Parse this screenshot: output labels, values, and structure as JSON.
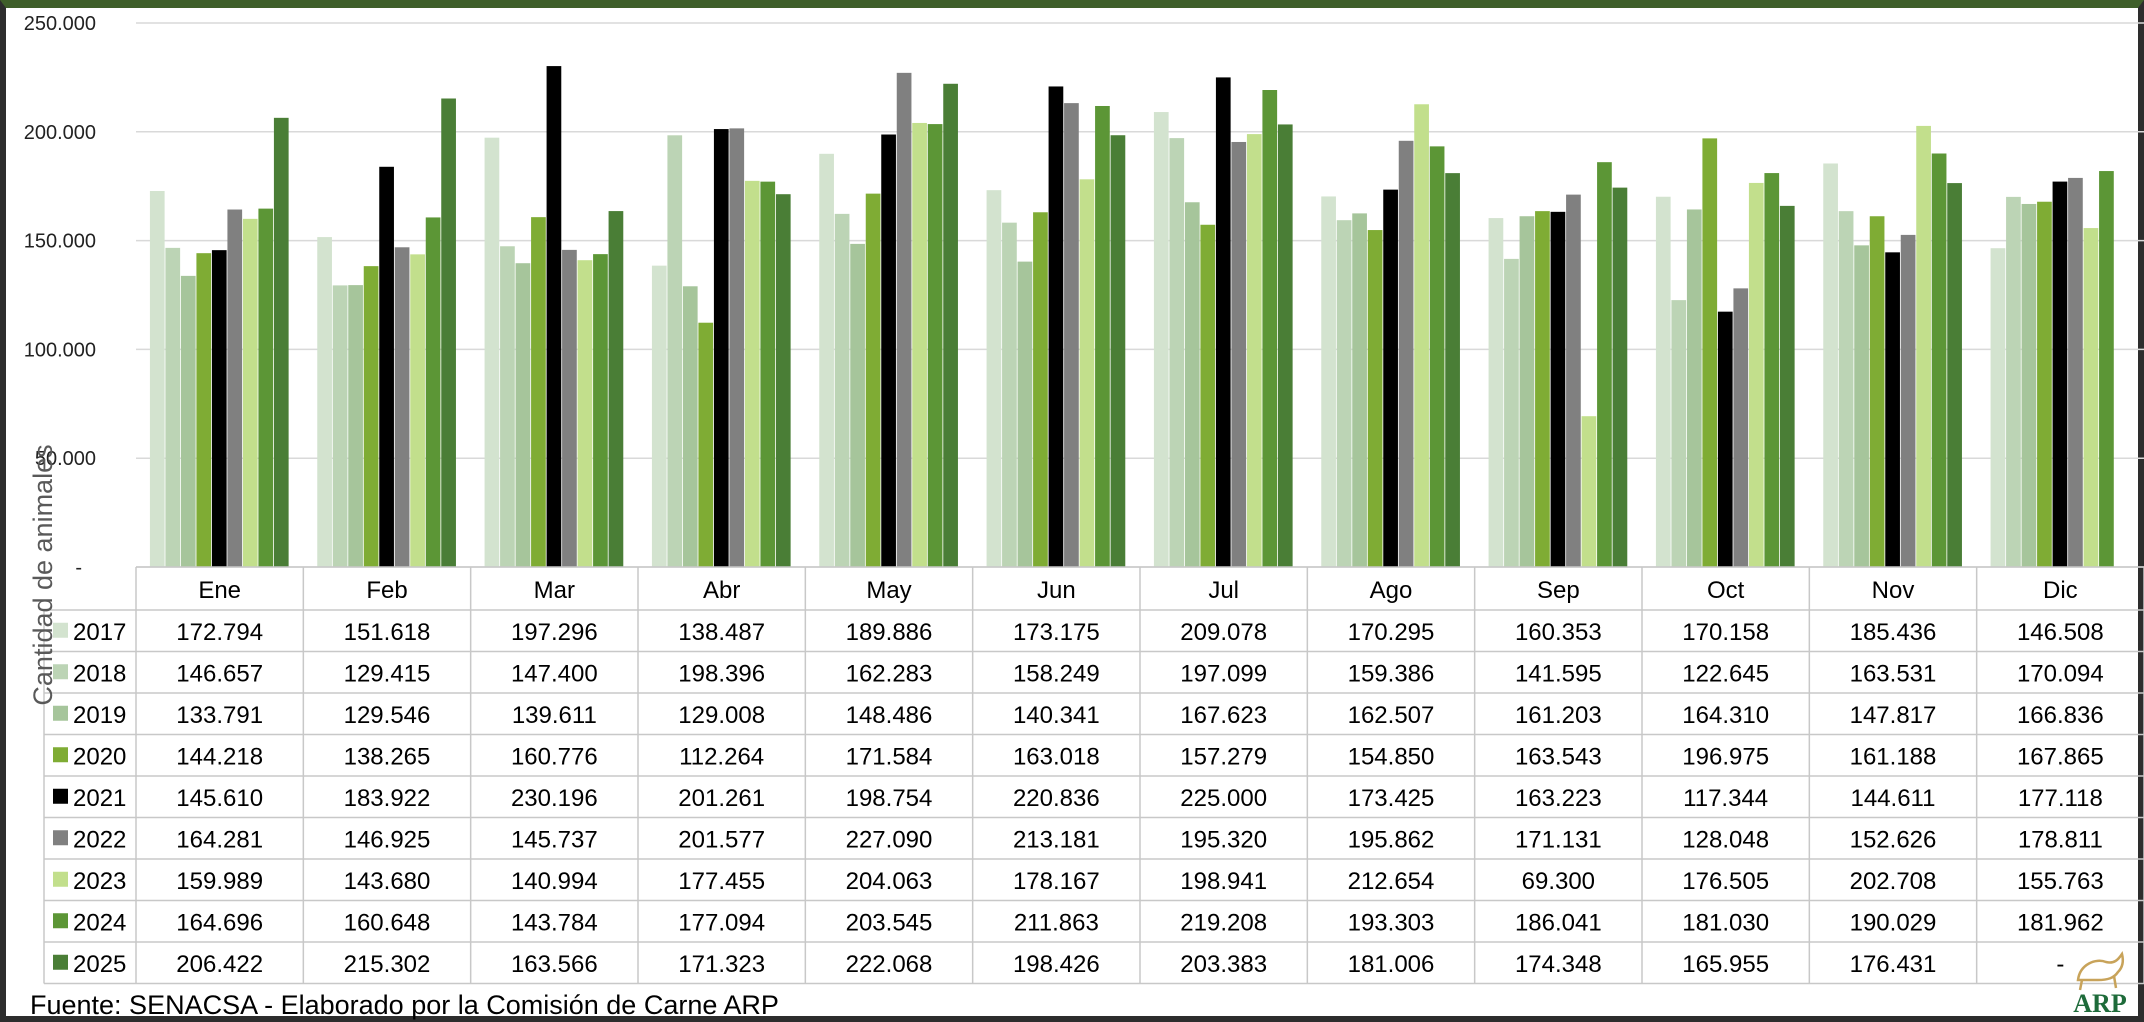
{
  "source_note": "Fuente: SENACSA - Elaborado por la Comisión de Carne ARP",
  "logo_text": "ARP",
  "colors": {
    "2017": "#d3e3cf",
    "2018": "#bcd4b5",
    "2019": "#a6c59b",
    "2020": "#7fac34",
    "2021": "#000000",
    "2022": "#808080",
    "2023": "#c2df8c",
    "2024": "#5c9636",
    "2025": "#4a7e36",
    "grid": "#d9d9d9",
    "table_border": "#c8c8c8"
  },
  "chart_data": {
    "type": "bar",
    "ylabel": "Cantidad de animales",
    "ylim": [
      0,
      250000
    ],
    "yticks": [
      {
        "value": 250000,
        "label": "250.000"
      },
      {
        "value": 200000,
        "label": "200.000"
      },
      {
        "value": 150000,
        "label": "150.000"
      },
      {
        "value": 100000,
        "label": "100.000"
      },
      {
        "value": 50000,
        "label": "50.000"
      },
      {
        "value": 0,
        "label": "-"
      }
    ],
    "grid": true,
    "legend": "data-table",
    "categories": [
      "Ene",
      "Feb",
      "Mar",
      "Abr",
      "May",
      "Jun",
      "Jul",
      "Ago",
      "Sep",
      "Oct",
      "Nov",
      "Dic"
    ],
    "series": [
      {
        "name": "2017",
        "values": [
          172794,
          151618,
          197296,
          138487,
          189886,
          173175,
          209078,
          170295,
          160353,
          170158,
          185436,
          146508
        ],
        "labels": [
          "172.794",
          "151.618",
          "197.296",
          "138.487",
          "189.886",
          "173.175",
          "209.078",
          "170.295",
          "160.353",
          "170.158",
          "185.436",
          "146.508"
        ]
      },
      {
        "name": "2018",
        "values": [
          146657,
          129415,
          147400,
          198396,
          162283,
          158249,
          197099,
          159386,
          141595,
          122645,
          163531,
          170094
        ],
        "labels": [
          "146.657",
          "129.415",
          "147.400",
          "198.396",
          "162.283",
          "158.249",
          "197.099",
          "159.386",
          "141.595",
          "122.645",
          "163.531",
          "170.094"
        ]
      },
      {
        "name": "2019",
        "values": [
          133791,
          129546,
          139611,
          129008,
          148486,
          140341,
          167623,
          162507,
          161203,
          164310,
          147817,
          166836
        ],
        "labels": [
          "133.791",
          "129.546",
          "139.611",
          "129.008",
          "148.486",
          "140.341",
          "167.623",
          "162.507",
          "161.203",
          "164.310",
          "147.817",
          "166.836"
        ]
      },
      {
        "name": "2020",
        "values": [
          144218,
          138265,
          160776,
          112264,
          171584,
          163018,
          157279,
          154850,
          163543,
          196975,
          161188,
          167865
        ],
        "labels": [
          "144.218",
          "138.265",
          "160.776",
          "112.264",
          "171.584",
          "163.018",
          "157.279",
          "154.850",
          "163.543",
          "196.975",
          "161.188",
          "167.865"
        ]
      },
      {
        "name": "2021",
        "values": [
          145610,
          183922,
          230196,
          201261,
          198754,
          220836,
          225000,
          173425,
          163223,
          117344,
          144611,
          177118
        ],
        "labels": [
          "145.610",
          "183.922",
          "230.196",
          "201.261",
          "198.754",
          "220.836",
          "225.000",
          "173.425",
          "163.223",
          "117.344",
          "144.611",
          "177.118"
        ]
      },
      {
        "name": "2022",
        "values": [
          164281,
          146925,
          145737,
          201577,
          227090,
          213181,
          195320,
          195862,
          171131,
          128048,
          152626,
          178811
        ],
        "labels": [
          "164.281",
          "146.925",
          "145.737",
          "201.577",
          "227.090",
          "213.181",
          "195.320",
          "195.862",
          "171.131",
          "128.048",
          "152.626",
          "178.811"
        ]
      },
      {
        "name": "2023",
        "values": [
          159989,
          143680,
          140994,
          177455,
          204063,
          178167,
          198941,
          212654,
          69300,
          176505,
          202708,
          155763
        ],
        "labels": [
          "159.989",
          "143.680",
          "140.994",
          "177.455",
          "204.063",
          "178.167",
          "198.941",
          "212.654",
          "69.300",
          "176.505",
          "202.708",
          "155.763"
        ]
      },
      {
        "name": "2024",
        "values": [
          164696,
          160648,
          143784,
          177094,
          203545,
          211863,
          219208,
          193303,
          186041,
          181030,
          190029,
          181962
        ],
        "labels": [
          "164.696",
          "160.648",
          "143.784",
          "177.094",
          "203.545",
          "211.863",
          "219.208",
          "193.303",
          "186.041",
          "181.030",
          "190.029",
          "181.962"
        ]
      },
      {
        "name": "2025",
        "values": [
          206422,
          215302,
          163566,
          171323,
          222068,
          198426,
          203383,
          181006,
          174348,
          165955,
          176431,
          null
        ],
        "labels": [
          "206.422",
          "215.302",
          "163.566",
          "171.323",
          "222.068",
          "198.426",
          "203.383",
          "181.006",
          "174.348",
          "165.955",
          "176.431",
          "-"
        ]
      }
    ]
  }
}
